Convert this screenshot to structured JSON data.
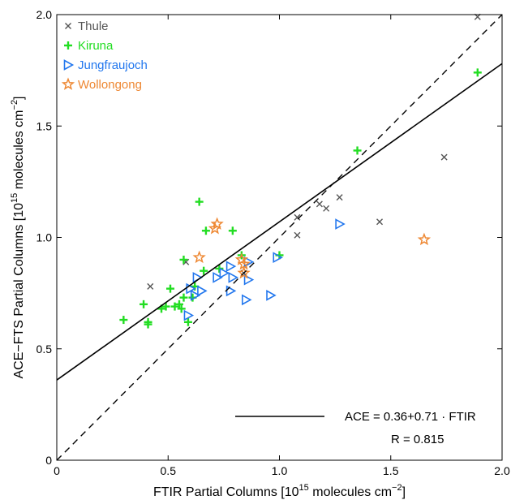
{
  "chart_data": {
    "type": "scatter",
    "xlabel_main": "FTIR Partial Columns [10",
    "xlabel_exp": "15",
    "xlabel_rest": " molecules cm",
    "xlabel_exp2": "−2",
    "xlabel_end": "]",
    "ylabel_main": "ACE−FTS Partial Columns [10",
    "ylabel_exp": "15",
    "ylabel_rest": " molecules cm",
    "ylabel_exp2": "−2",
    "ylabel_end": "]",
    "xlim": [
      0,
      2
    ],
    "ylim": [
      0,
      2
    ],
    "xticks": [
      "0",
      "0.5",
      "1.0",
      "1.5",
      "2.0"
    ],
    "yticks": [
      "0",
      "0.5",
      "1.0",
      "1.5",
      "2.0"
    ],
    "grid": false,
    "legend_position": "top-left",
    "fit_label": "ACE = 0.36+0.71 · FTIR",
    "r_label": "R = 0.815",
    "fit": {
      "intercept": 0.36,
      "slope": 0.71
    },
    "series": [
      {
        "name": "Thule",
        "marker": "x",
        "color": "#555555",
        "points": [
          [
            0.42,
            0.78
          ],
          [
            0.58,
            0.89
          ],
          [
            0.84,
            0.84
          ],
          [
            1.08,
            1.09
          ],
          [
            1.08,
            1.01
          ],
          [
            1.18,
            1.15
          ],
          [
            1.21,
            1.13
          ],
          [
            1.27,
            1.18
          ],
          [
            1.45,
            1.07
          ],
          [
            1.74,
            1.36
          ],
          [
            1.89,
            1.99
          ]
        ]
      },
      {
        "name": "Kiruna",
        "marker": "plus",
        "color": "#22dd22",
        "points": [
          [
            0.3,
            0.63
          ],
          [
            0.39,
            0.7
          ],
          [
            0.41,
            0.62
          ],
          [
            0.41,
            0.61
          ],
          [
            0.47,
            0.68
          ],
          [
            0.49,
            0.69
          ],
          [
            0.51,
            0.77
          ],
          [
            0.53,
            0.69
          ],
          [
            0.55,
            0.7
          ],
          [
            0.56,
            0.68
          ],
          [
            0.57,
            0.73
          ],
          [
            0.57,
            0.9
          ],
          [
            0.59,
            0.62
          ],
          [
            0.61,
            0.73
          ],
          [
            0.62,
            0.78
          ],
          [
            0.64,
            1.16
          ],
          [
            0.66,
            0.85
          ],
          [
            0.67,
            1.03
          ],
          [
            0.73,
            0.86
          ],
          [
            0.79,
            1.03
          ],
          [
            0.83,
            0.92
          ],
          [
            1.0,
            0.92
          ],
          [
            1.35,
            1.39
          ],
          [
            1.89,
            1.74
          ]
        ]
      },
      {
        "name": "Jungfraujoch",
        "marker": "triangle-right",
        "color": "#2277ee",
        "points": [
          [
            0.59,
            0.65
          ],
          [
            0.6,
            0.77
          ],
          [
            0.62,
            0.74
          ],
          [
            0.63,
            0.82
          ],
          [
            0.65,
            0.76
          ],
          [
            0.72,
            0.82
          ],
          [
            0.75,
            0.84
          ],
          [
            0.78,
            0.87
          ],
          [
            0.78,
            0.76
          ],
          [
            0.79,
            0.82
          ],
          [
            0.85,
            0.72
          ],
          [
            0.86,
            0.81
          ],
          [
            0.86,
            0.89
          ],
          [
            0.96,
            0.74
          ],
          [
            0.99,
            0.91
          ],
          [
            1.27,
            1.06
          ]
        ]
      },
      {
        "name": "Wollongong",
        "marker": "star",
        "color": "#ee8833",
        "points": [
          [
            0.64,
            0.91
          ],
          [
            0.71,
            1.04
          ],
          [
            0.72,
            1.06
          ],
          [
            0.83,
            0.9
          ],
          [
            0.84,
            0.88
          ],
          [
            0.84,
            0.84
          ],
          [
            1.65,
            0.99
          ]
        ]
      }
    ]
  }
}
